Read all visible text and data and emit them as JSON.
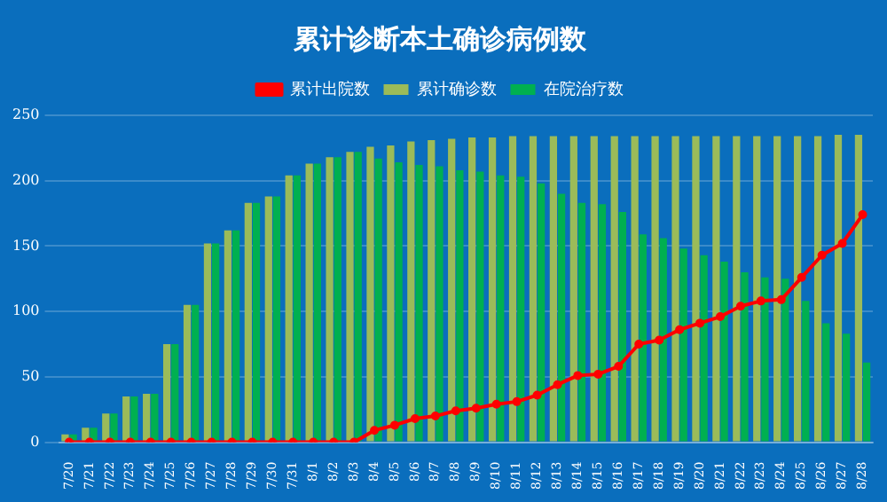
{
  "chart_data": {
    "type": "bar",
    "title": "累计诊断本土确诊病例数",
    "categories": [
      "7/20",
      "7/21",
      "7/22",
      "7/23",
      "7/24",
      "7/25",
      "7/26",
      "7/27",
      "7/28",
      "7/29",
      "7/30",
      "7/31",
      "8/1",
      "8/2",
      "8/3",
      "8/4",
      "8/5",
      "8/6",
      "8/7",
      "8/8",
      "8/9",
      "8/10",
      "8/11",
      "8/12",
      "8/13",
      "8/14",
      "8/15",
      "8/16",
      "8/17",
      "8/18",
      "8/19",
      "8/20",
      "8/21",
      "8/22",
      "8/23",
      "8/24",
      "8/25",
      "8/26",
      "8/27",
      "8/28"
    ],
    "series": [
      {
        "name": "累计确诊数",
        "color": "#9bbb59",
        "values": [
          6,
          11,
          22,
          35,
          37,
          75,
          105,
          152,
          162,
          183,
          188,
          204,
          213,
          218,
          222,
          226,
          227,
          230,
          231,
          232,
          233,
          233,
          234,
          234,
          234,
          234,
          234,
          234,
          234,
          234,
          234,
          234,
          234,
          234,
          234,
          234,
          234,
          234,
          235,
          235
        ]
      },
      {
        "name": "在院治疗数",
        "color": "#00b050",
        "values": [
          6,
          11,
          22,
          35,
          37,
          75,
          105,
          152,
          162,
          183,
          188,
          204,
          213,
          218,
          222,
          217,
          214,
          212,
          211,
          208,
          207,
          204,
          203,
          198,
          190,
          183,
          182,
          176,
          159,
          156,
          148,
          143,
          138,
          130,
          126,
          125,
          108,
          91,
          83,
          61
        ]
      },
      {
        "name": "累计出院数",
        "type": "line",
        "color": "#ff0000",
        "values": [
          0,
          0,
          0,
          0,
          0,
          0,
          0,
          0,
          0,
          0,
          0,
          0,
          0,
          0,
          0,
          9,
          13,
          18,
          20,
          24,
          26,
          29,
          31,
          36,
          44,
          51,
          52,
          58,
          75,
          78,
          86,
          91,
          96,
          104,
          108,
          109,
          126,
          143,
          152,
          174
        ]
      }
    ],
    "ylim": [
      0,
      250
    ],
    "yticks": [
      0,
      50,
      100,
      150,
      200,
      250
    ],
    "grid": "y",
    "legend": "top",
    "marker": "circle",
    "line_style": "solid"
  }
}
